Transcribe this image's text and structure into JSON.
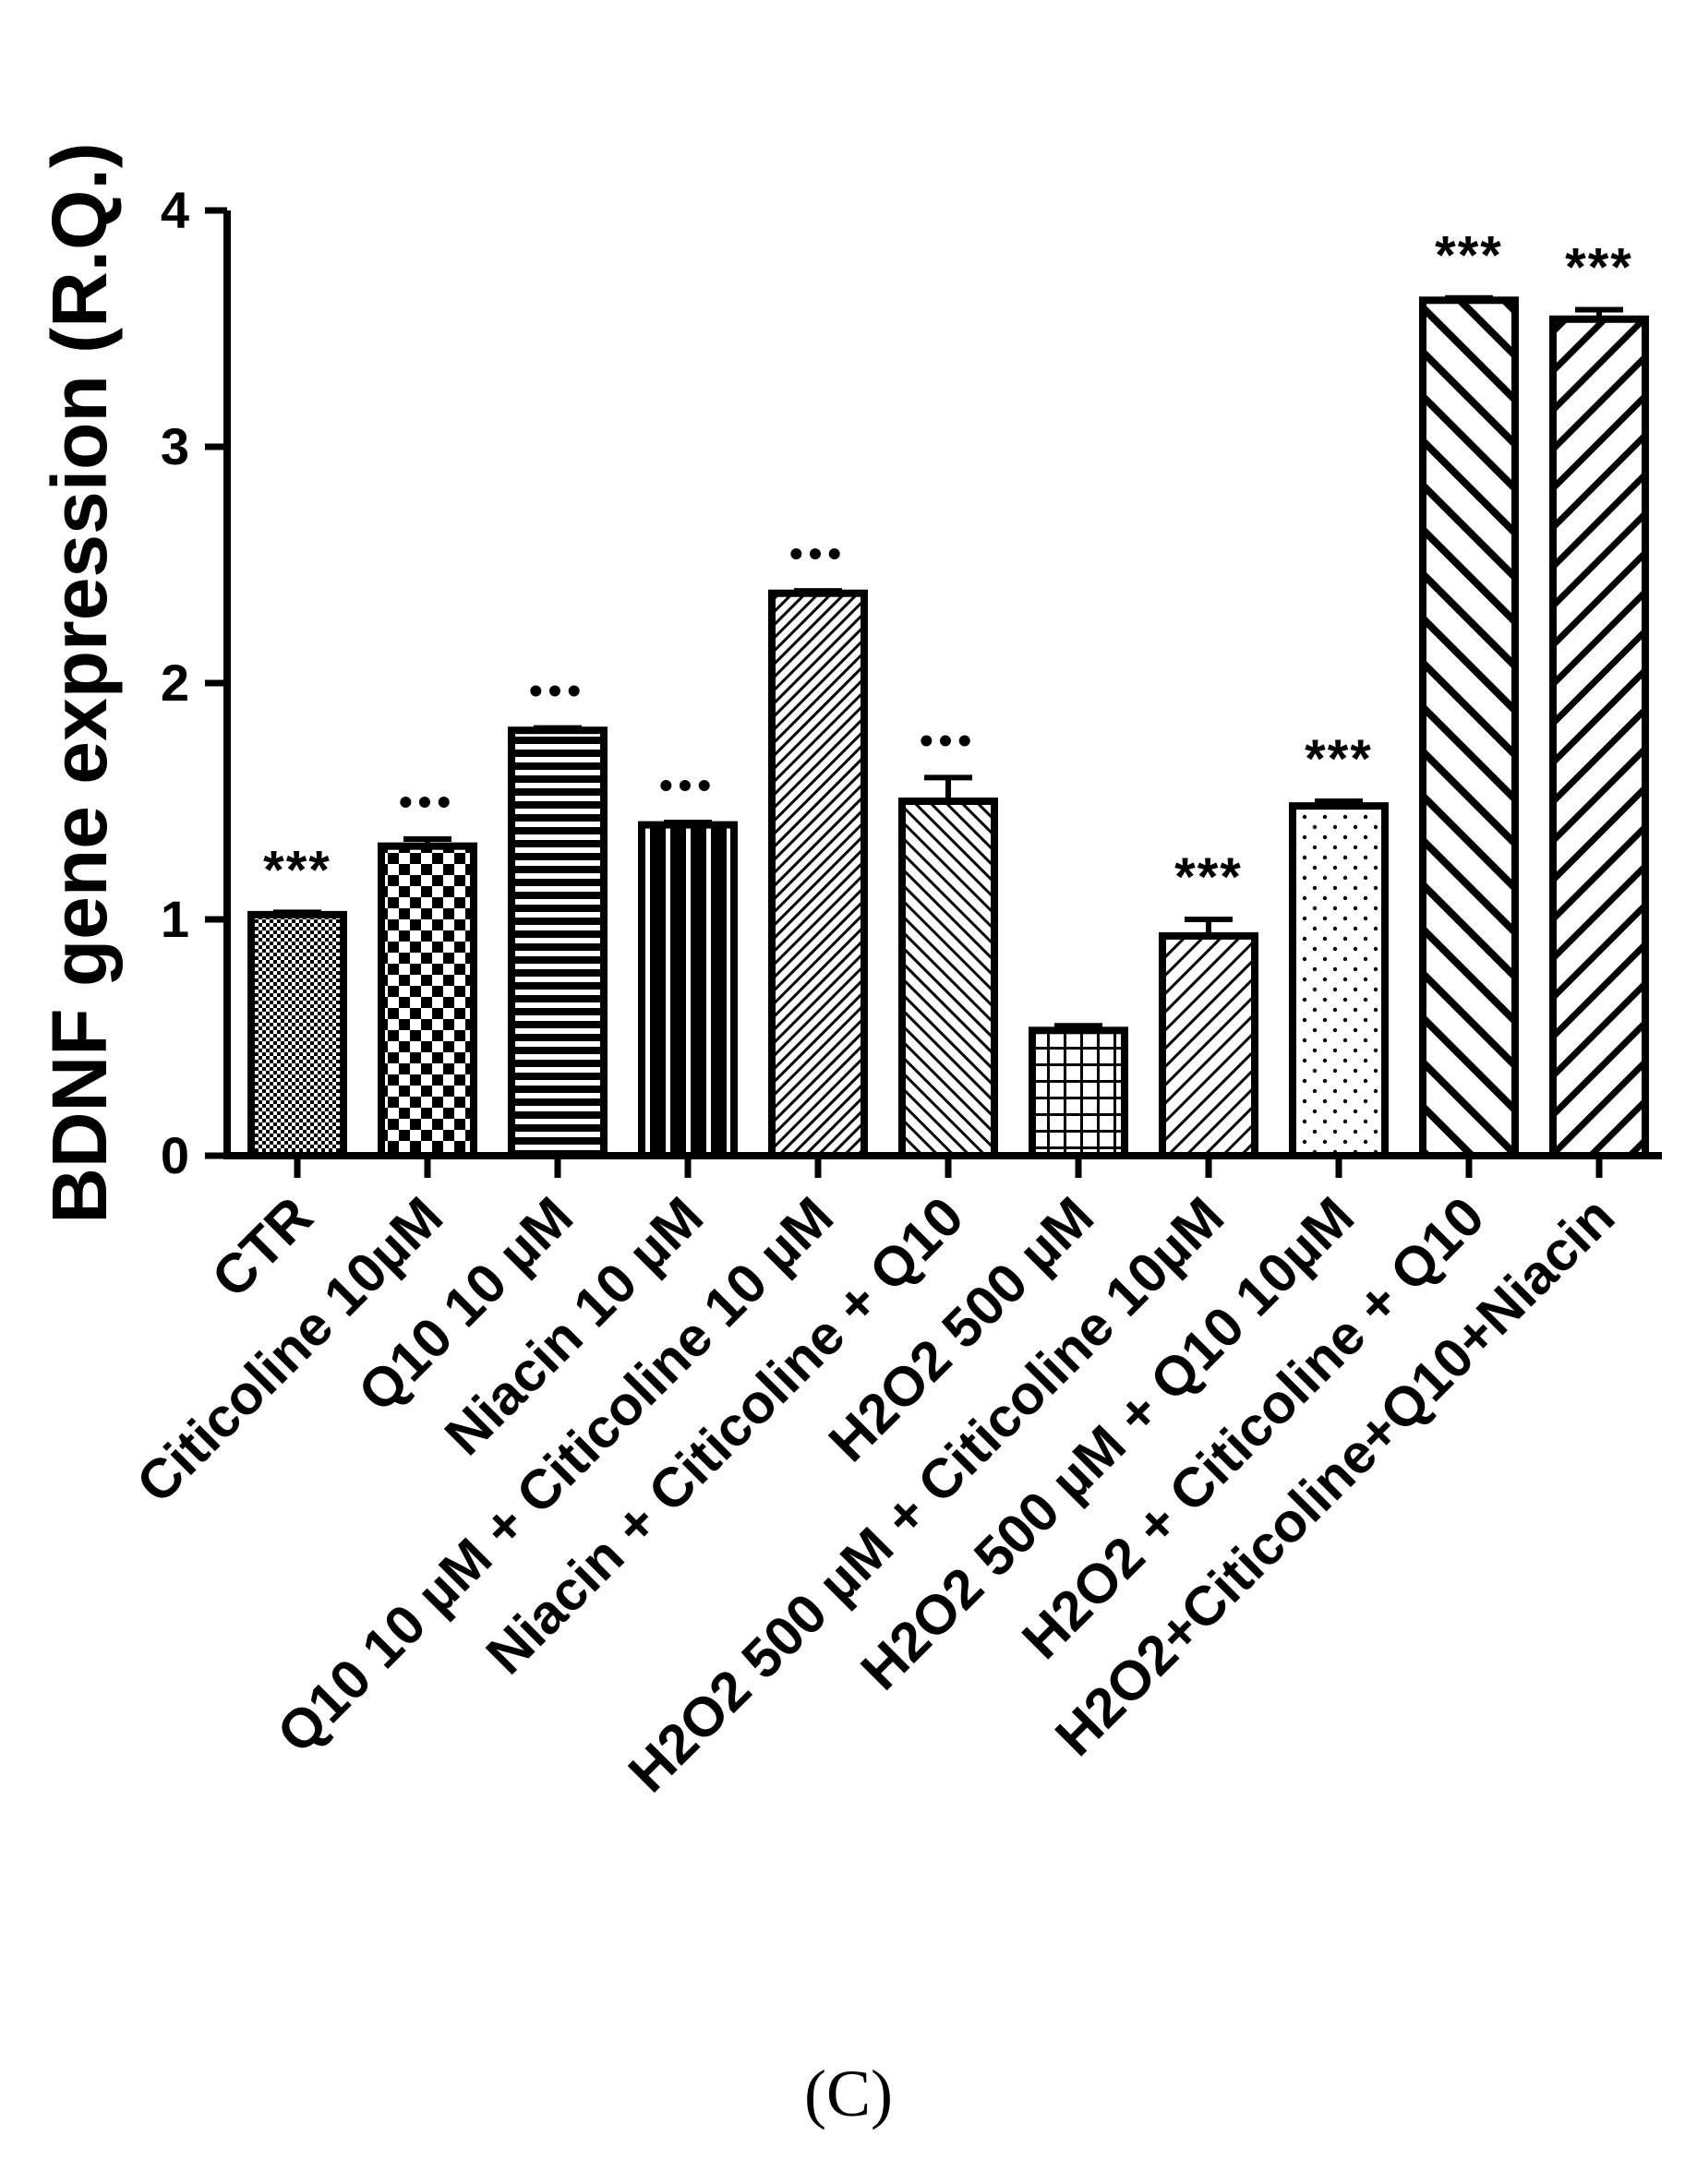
{
  "panel_label": "(C)",
  "chart_data": {
    "type": "bar",
    "ylabel": "BDNF gene expression (R.Q.)",
    "xlabel": "",
    "ylim": [
      0,
      4
    ],
    "yticks": [
      "0",
      "1",
      "2",
      "3",
      "4"
    ],
    "grid": false,
    "categories": [
      "CTR",
      "Citicoline 10µM",
      "Q10 10 µM",
      "Niacin 10 µM",
      "Q10 10 µM + Citicoline 10 µM",
      "Niacin + Citicoline + Q10",
      "H2O2 500 µM",
      "H2O2 500 µM + Citicoline 10µM",
      "H2O2 500 µM + Q10 10µM",
      "H2O2 + Citicoline + Q10",
      "H2O2+Citicoline+Q10+Niacin"
    ],
    "values": [
      1.02,
      1.31,
      1.8,
      1.4,
      2.38,
      1.5,
      0.53,
      0.93,
      1.48,
      3.62,
      3.54
    ],
    "errors": [
      0.01,
      0.03,
      0.01,
      0.01,
      0.01,
      0.1,
      0.02,
      0.07,
      0.02,
      0.01,
      0.04
    ],
    "significance": [
      "***",
      "•••",
      "•••",
      "•••",
      "•••",
      "•••",
      "",
      "***",
      "***",
      "***",
      "***"
    ],
    "patterns": [
      "fine-check",
      "checker",
      "hlines",
      "vlines",
      "fine-diag-up",
      "diag-down",
      "grid",
      "diag-up",
      "dots",
      "wide-diag-down",
      "wide-diag-up"
    ]
  }
}
